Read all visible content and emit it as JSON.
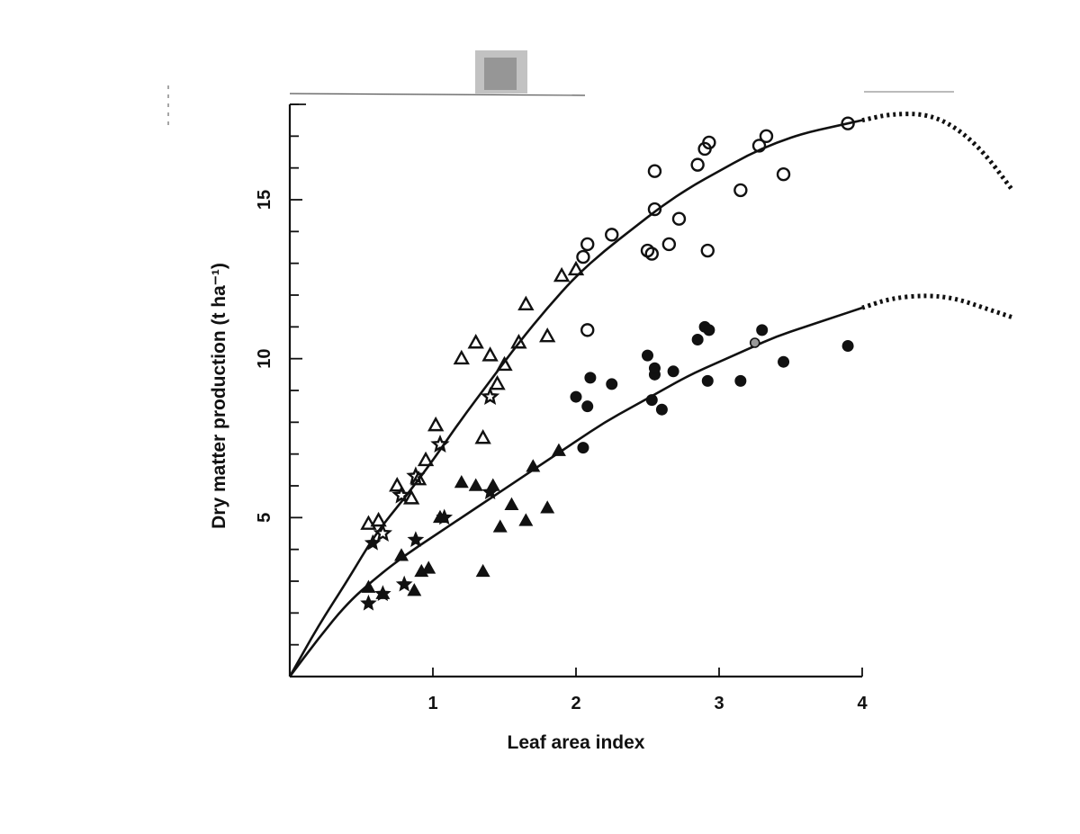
{
  "chart_data": {
    "type": "scatter",
    "title": "",
    "xlabel": "Leaf area index",
    "ylabel": "Dry matter production (t ha⁻¹)",
    "xlim": [
      0,
      4
    ],
    "ylim": [
      0,
      18
    ],
    "x_ticks": [
      "1",
      "2",
      "3",
      "4"
    ],
    "y_ticks": [
      "5",
      "10",
      "15"
    ],
    "grid": false,
    "legend": "none",
    "colors": {
      "ink": "#111111",
      "background": "#ffffff"
    },
    "series": [
      {
        "marker": "open-triangle",
        "points": [
          [
            0.55,
            4.8
          ],
          [
            0.62,
            4.9
          ],
          [
            0.75,
            6.0
          ],
          [
            0.85,
            5.6
          ],
          [
            0.9,
            6.2
          ],
          [
            0.95,
            6.8
          ],
          [
            1.02,
            7.9
          ],
          [
            1.2,
            10.0
          ],
          [
            1.3,
            10.5
          ],
          [
            1.35,
            7.5
          ],
          [
            1.4,
            10.1
          ],
          [
            1.45,
            9.2
          ],
          [
            1.5,
            9.8
          ],
          [
            1.6,
            10.5
          ],
          [
            1.65,
            11.7
          ],
          [
            1.8,
            10.7
          ],
          [
            1.9,
            12.6
          ],
          [
            2.0,
            12.8
          ]
        ]
      },
      {
        "marker": "open-star",
        "points": [
          [
            0.65,
            4.5
          ],
          [
            0.78,
            5.7
          ],
          [
            0.88,
            6.3
          ],
          [
            1.05,
            7.3
          ],
          [
            1.4,
            8.8
          ]
        ]
      },
      {
        "marker": "open-circle",
        "points": [
          [
            2.05,
            13.2
          ],
          [
            2.08,
            13.6
          ],
          [
            2.08,
            10.9
          ],
          [
            2.25,
            13.9
          ],
          [
            2.5,
            13.4
          ],
          [
            2.53,
            13.3
          ],
          [
            2.55,
            14.7
          ],
          [
            2.55,
            15.9
          ],
          [
            2.65,
            13.6
          ],
          [
            2.72,
            14.4
          ],
          [
            2.85,
            16.1
          ],
          [
            2.9,
            16.6
          ],
          [
            2.93,
            16.8
          ],
          [
            2.92,
            13.4
          ],
          [
            3.15,
            15.3
          ],
          [
            3.28,
            16.7
          ],
          [
            3.33,
            17.0
          ],
          [
            3.45,
            15.8
          ],
          [
            3.9,
            17.4
          ]
        ]
      },
      {
        "marker": "filled-triangle",
        "points": [
          [
            0.55,
            2.8
          ],
          [
            0.65,
            2.6
          ],
          [
            0.78,
            3.8
          ],
          [
            0.87,
            2.7
          ],
          [
            0.92,
            3.3
          ],
          [
            0.97,
            3.4
          ],
          [
            1.05,
            5.0
          ],
          [
            1.2,
            6.1
          ],
          [
            1.3,
            6.0
          ],
          [
            1.35,
            3.3
          ],
          [
            1.42,
            6.0
          ],
          [
            1.47,
            4.7
          ],
          [
            1.55,
            5.4
          ],
          [
            1.65,
            4.9
          ],
          [
            1.7,
            6.6
          ],
          [
            1.8,
            5.3
          ],
          [
            1.88,
            7.1
          ]
        ]
      },
      {
        "marker": "filled-star",
        "points": [
          [
            0.55,
            2.3
          ],
          [
            0.58,
            4.2
          ],
          [
            0.65,
            2.6
          ],
          [
            0.8,
            2.9
          ],
          [
            0.88,
            4.3
          ],
          [
            1.08,
            5.0
          ],
          [
            1.4,
            5.8
          ]
        ]
      },
      {
        "marker": "filled-circle",
        "points": [
          [
            2.0,
            8.8
          ],
          [
            2.05,
            7.2
          ],
          [
            2.08,
            8.5
          ],
          [
            2.1,
            9.4
          ],
          [
            2.25,
            9.2
          ],
          [
            2.5,
            10.1
          ],
          [
            2.53,
            8.7
          ],
          [
            2.55,
            9.5
          ],
          [
            2.55,
            9.7
          ],
          [
            2.6,
            8.4
          ],
          [
            2.68,
            9.6
          ],
          [
            2.85,
            10.6
          ],
          [
            2.9,
            11.0
          ],
          [
            2.93,
            10.9
          ],
          [
            2.92,
            9.3
          ],
          [
            3.15,
            9.3
          ],
          [
            3.3,
            10.9
          ],
          [
            3.45,
            9.9
          ],
          [
            3.9,
            10.4
          ]
        ]
      },
      {
        "marker": "half-circle",
        "points": [
          [
            3.25,
            10.5
          ]
        ]
      }
    ],
    "fitted_curves": [
      {
        "line": "solid",
        "points": [
          [
            0,
            0
          ],
          [
            0.2,
            1.6
          ],
          [
            0.4,
            3.0
          ],
          [
            0.6,
            4.5
          ],
          [
            0.8,
            5.6
          ],
          [
            1.0,
            6.8
          ],
          [
            1.2,
            8.1
          ],
          [
            1.4,
            9.3
          ],
          [
            1.6,
            10.5
          ],
          [
            1.8,
            11.6
          ],
          [
            2.0,
            12.6
          ],
          [
            2.2,
            13.4
          ],
          [
            2.4,
            14.1
          ],
          [
            2.6,
            14.8
          ],
          [
            2.8,
            15.4
          ],
          [
            3.0,
            15.9
          ],
          [
            3.2,
            16.4
          ],
          [
            3.4,
            16.8
          ],
          [
            3.6,
            17.1
          ],
          [
            3.8,
            17.3
          ],
          [
            4.0,
            17.5
          ]
        ]
      },
      {
        "line": "dotted",
        "points": [
          [
            4.0,
            17.5
          ],
          [
            4.2,
            17.7
          ],
          [
            4.45,
            17.7
          ],
          [
            4.65,
            17.3
          ],
          [
            4.85,
            16.5
          ],
          [
            5.05,
            15.3
          ]
        ]
      },
      {
        "line": "solid",
        "points": [
          [
            0,
            0
          ],
          [
            0.2,
            1.2
          ],
          [
            0.4,
            2.3
          ],
          [
            0.6,
            3.1
          ],
          [
            0.8,
            3.8
          ],
          [
            1.0,
            4.4
          ],
          [
            1.2,
            5.0
          ],
          [
            1.4,
            5.6
          ],
          [
            1.6,
            6.2
          ],
          [
            1.8,
            6.8
          ],
          [
            2.0,
            7.4
          ],
          [
            2.2,
            8.0
          ],
          [
            2.4,
            8.5
          ],
          [
            2.6,
            9.0
          ],
          [
            2.8,
            9.5
          ],
          [
            3.0,
            9.9
          ],
          [
            3.2,
            10.3
          ],
          [
            3.4,
            10.7
          ],
          [
            3.6,
            11.0
          ],
          [
            3.8,
            11.3
          ],
          [
            4.0,
            11.6
          ]
        ]
      },
      {
        "line": "dotted",
        "points": [
          [
            4.0,
            11.6
          ],
          [
            4.2,
            11.9
          ],
          [
            4.45,
            12.0
          ],
          [
            4.65,
            11.9
          ],
          [
            4.85,
            11.6
          ],
          [
            5.05,
            11.3
          ]
        ]
      }
    ]
  }
}
